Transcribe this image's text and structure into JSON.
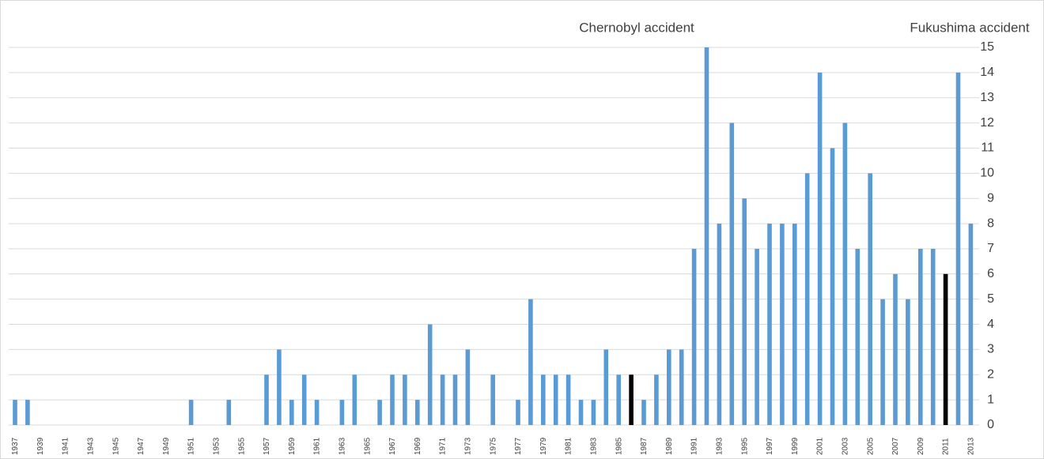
{
  "chart_data": {
    "type": "bar",
    "annotations": [
      "Chernobyl accident",
      "Fukushima accident"
    ],
    "categories": [
      "1937",
      null,
      "1939",
      null,
      "1941",
      null,
      "1943",
      null,
      "1945",
      null,
      "1947",
      null,
      "1949",
      null,
      "1951",
      null,
      "1953",
      null,
      "1955",
      null,
      "1957",
      null,
      "1959",
      null,
      "1961",
      null,
      "1963",
      null,
      "1965",
      null,
      "1967",
      null,
      "1969",
      null,
      "1971",
      null,
      "1973",
      null,
      "1975",
      null,
      "1977",
      null,
      "1979",
      null,
      "1981",
      null,
      "1983",
      null,
      "1985",
      null,
      "1987",
      null,
      "1989",
      null,
      "1991",
      null,
      "1993",
      null,
      "1995",
      null,
      "1997",
      null,
      "1999",
      null,
      "2001",
      null,
      "2003",
      null,
      "2005",
      null,
      "2007",
      null,
      "2009",
      null,
      "2011",
      null,
      "2013"
    ],
    "values": [
      1,
      1,
      0,
      0,
      0,
      0,
      0,
      0,
      0,
      0,
      0,
      0,
      0,
      0,
      1,
      0,
      0,
      1,
      0,
      0,
      2,
      3,
      1,
      2,
      1,
      0,
      1,
      2,
      0,
      1,
      2,
      2,
      1,
      4,
      2,
      2,
      3,
      0,
      2,
      0,
      1,
      5,
      2,
      2,
      2,
      1,
      1,
      3,
      2,
      2,
      1,
      2,
      3,
      3,
      7,
      15,
      8,
      12,
      9,
      7,
      8,
      8,
      8,
      10,
      14,
      11,
      12,
      7,
      10,
      5,
      6,
      5,
      7,
      7,
      6,
      14,
      8
    ],
    "colors": [
      "#5b9bd5",
      "#5b9bd5",
      "#5b9bd5",
      "#5b9bd5",
      "#5b9bd5",
      "#5b9bd5",
      "#5b9bd5",
      "#5b9bd5",
      "#5b9bd5",
      "#5b9bd5",
      "#5b9bd5",
      "#5b9bd5",
      "#5b9bd5",
      "#5b9bd5",
      "#5b9bd5",
      "#5b9bd5",
      "#5b9bd5",
      "#5b9bd5",
      "#5b9bd5",
      "#5b9bd5",
      "#5b9bd5",
      "#5b9bd5",
      "#5b9bd5",
      "#5b9bd5",
      "#5b9bd5",
      "#5b9bd5",
      "#5b9bd5",
      "#5b9bd5",
      "#5b9bd5",
      "#5b9bd5",
      "#5b9bd5",
      "#5b9bd5",
      "#5b9bd5",
      "#5b9bd5",
      "#5b9bd5",
      "#5b9bd5",
      "#5b9bd5",
      "#5b9bd5",
      "#5b9bd5",
      "#5b9bd5",
      "#5b9bd5",
      "#5b9bd5",
      "#5b9bd5",
      "#5b9bd5",
      "#5b9bd5",
      "#5b9bd5",
      "#5b9bd5",
      "#5b9bd5",
      "#5b9bd5",
      "#000000",
      "#5b9bd5",
      "#5b9bd5",
      "#5b9bd5",
      "#5b9bd5",
      "#5b9bd5",
      "#5b9bd5",
      "#5b9bd5",
      "#5b9bd5",
      "#5b9bd5",
      "#5b9bd5",
      "#5b9bd5",
      "#5b9bd5",
      "#5b9bd5",
      "#5b9bd5",
      "#5b9bd5",
      "#5b9bd5",
      "#5b9bd5",
      "#5b9bd5",
      "#5b9bd5",
      "#5b9bd5",
      "#5b9bd5",
      "#5b9bd5",
      "#5b9bd5",
      "#5b9bd5",
      "#000000",
      "#5b9bd5",
      "#5b9bd5"
    ],
    "ylim": [
      0,
      15
    ],
    "yticks": [
      0,
      1,
      2,
      3,
      4,
      5,
      6,
      7,
      8,
      9,
      10,
      11,
      12,
      13,
      14,
      15
    ],
    "grid": true
  }
}
